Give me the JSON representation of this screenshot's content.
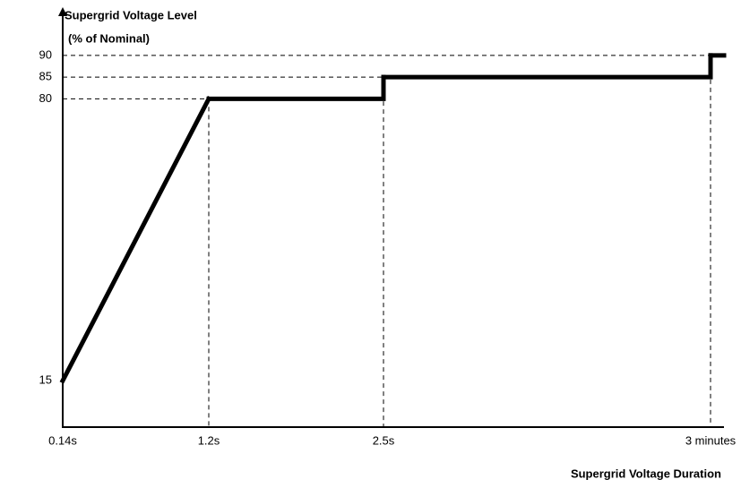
{
  "chart_data": {
    "type": "line",
    "y_label_lines": [
      "Supergrid Voltage Level",
      "(% of Nominal)"
    ],
    "x_label": "Supergrid Voltage Duration",
    "categories": [
      "0.14s",
      "1.2s",
      "2.5s",
      "3 minutes"
    ],
    "values": [
      15,
      80,
      85,
      90
    ],
    "drawstyle": [
      "linear",
      "steps-post",
      "steps-post"
    ],
    "color": "#000000",
    "ylim": [
      4.3,
      100.3
    ],
    "yticks": [
      15,
      80,
      85,
      90
    ],
    "grid": true
  }
}
